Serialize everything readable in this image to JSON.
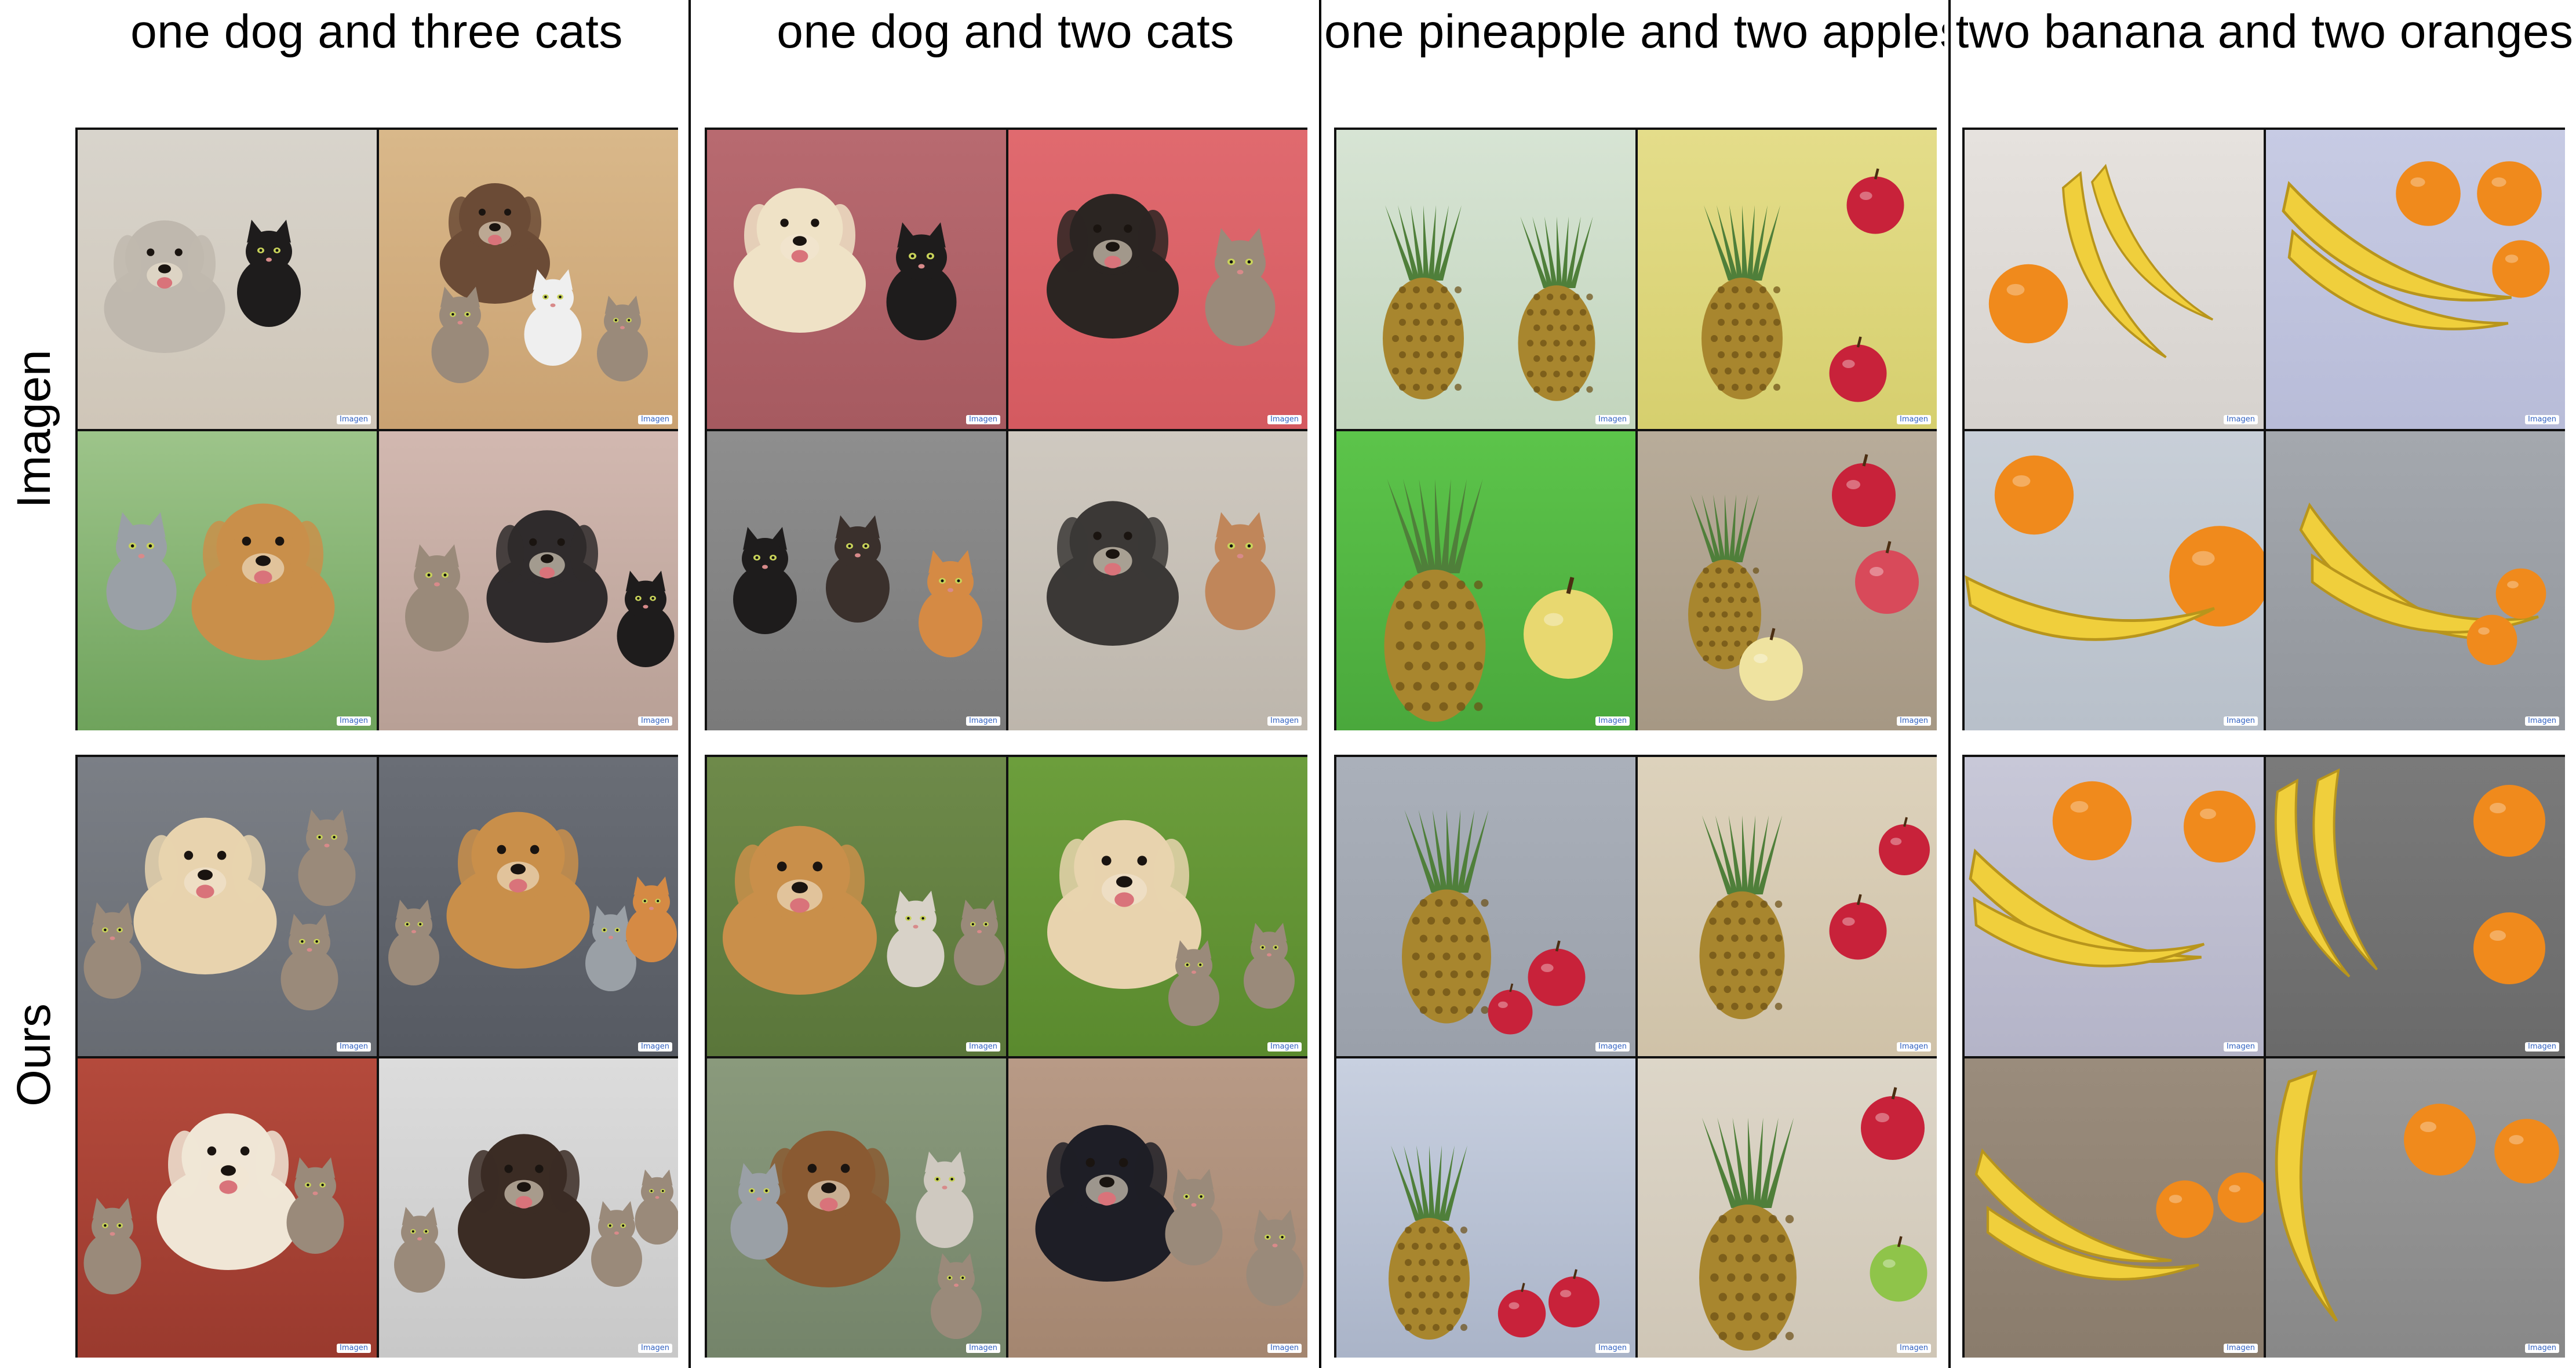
{
  "columns": [
    {
      "title": "one dog and three cats"
    },
    {
      "title": "one dog and two cats"
    },
    {
      "title": "one pineapple and two apples"
    },
    {
      "title": "two banana and two oranges"
    }
  ],
  "rows": [
    {
      "label": "Imagen"
    },
    {
      "label": "Ours"
    }
  ],
  "watermark": "Imagen",
  "colors": {
    "dog_cream": "#e8d3ae",
    "dog_golden": "#c98f4a",
    "dog_black": "#2b2522",
    "cat_tabby": "#9a8a7a",
    "cat_black": "#1e1c1c",
    "cat_orange": "#d58a44",
    "pineapple_body": "#a8862e",
    "pineapple_leaf": "#4f7f3a",
    "apple_red": "#c8223a",
    "apple_green": "#8fc44a",
    "banana_yellow": "#f0cf3c",
    "orange_fruit": "#f08a1c"
  }
}
